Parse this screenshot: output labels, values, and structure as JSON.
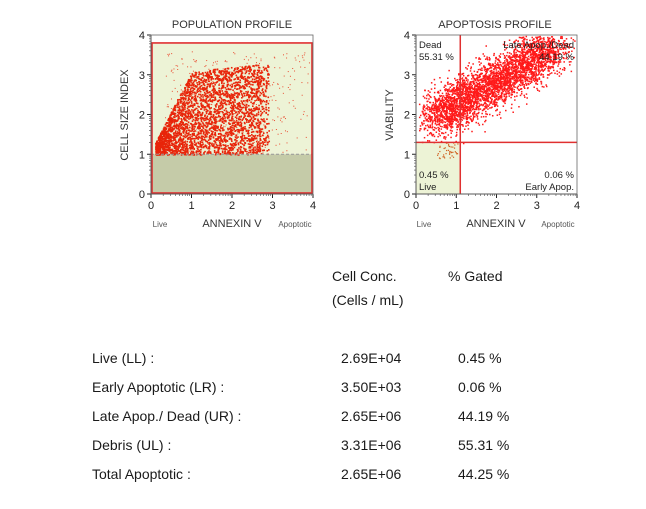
{
  "chart_data": [
    {
      "type": "scatter",
      "title": "POPULATION PROFILE",
      "xlabel": "ANNEXIN V",
      "ylabel": "CELL SIZE INDEX",
      "xlim": [
        0,
        4
      ],
      "ylim": [
        0,
        4
      ],
      "xticks": [
        "0",
        "1",
        "2",
        "3",
        "4"
      ],
      "yticks": [
        "0",
        "1",
        "2",
        "3",
        "4"
      ],
      "x_end_labels": {
        "left": "Live",
        "right": "Apoptotic"
      },
      "gate": {
        "x_min": 0,
        "x_max": 4,
        "y_min": 1,
        "y_max": 3.8
      },
      "debris_threshold_y": 1,
      "colors": {
        "points": "#e8250a",
        "gate_fill": "#edf3d6",
        "debris_fill": "#c5cba8",
        "gate_border": "#e03030"
      },
      "population_description": "dense cluster spanning Annexin V 0.1–2.9, cell size 1–3.3"
    },
    {
      "type": "scatter",
      "title": "APOPTOSIS PROFILE",
      "xlabel": "ANNEXIN V",
      "ylabel": "VIABILITY",
      "xlim": [
        0,
        4
      ],
      "ylim": [
        0,
        4
      ],
      "xticks": [
        "0",
        "1",
        "2",
        "3",
        "4"
      ],
      "yticks": [
        "0",
        "1",
        "2",
        "3",
        "4"
      ],
      "x_end_labels": {
        "left": "Live",
        "right": "Apoptotic"
      },
      "quadrant_x": 1.1,
      "quadrant_y": 1.3,
      "quadrants": [
        {
          "position": "upper-left",
          "name": "Dead",
          "percent": "55.31 %"
        },
        {
          "position": "upper-right",
          "name": "Late Apop./Dead",
          "percent": "44.19 %"
        },
        {
          "position": "lower-left",
          "name": "Live",
          "percent": "0.45 %"
        },
        {
          "position": "lower-right",
          "name": "Early Apop.",
          "percent": "0.06 %"
        }
      ],
      "colors": {
        "points": "#ff1a1a",
        "live_fill": "#edf3d6",
        "quadrant_line": "#e03030"
      },
      "population_description": "diagonal ellipse from (0.3,1.8) to (3.5,3.9)"
    }
  ],
  "results_table": {
    "columns": [
      "Cell Conc.",
      "(Cells / mL)",
      "% Gated"
    ],
    "rows": [
      {
        "label": "Live (LL) :",
        "conc": "2.69E+04",
        "gated": "0.45 %"
      },
      {
        "label": "Early Apoptotic (LR) :",
        "conc": "3.50E+03",
        "gated": "0.06 %"
      },
      {
        "label": "Late Apop./ Dead (UR) :",
        "conc": "2.65E+06",
        "gated": "44.19 %"
      },
      {
        "label": "Debris (UL) :",
        "conc": "3.31E+06",
        "gated": "55.31 %"
      },
      {
        "label": "Total Apoptotic :",
        "conc": "2.65E+06",
        "gated": "44.25 %"
      }
    ]
  }
}
